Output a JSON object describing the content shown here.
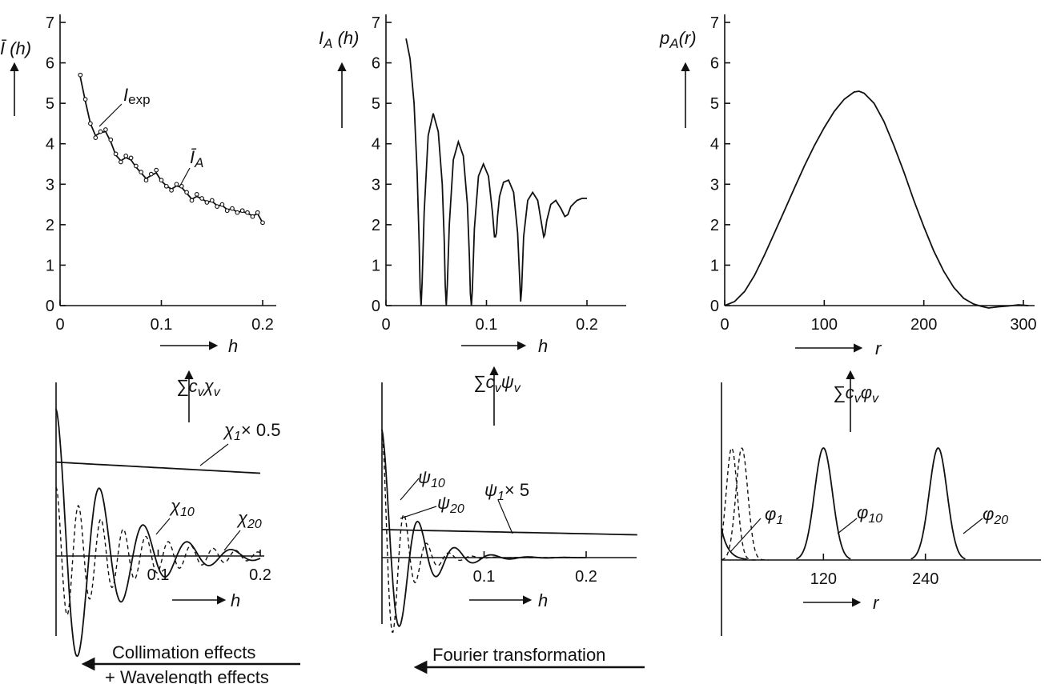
{
  "chart_data": [
    {
      "type": "scatter",
      "panel": "top-left",
      "ylabel": "Ī (h)",
      "xlabel": "h",
      "xlim": [
        0,
        0.2
      ],
      "ylim": [
        0,
        7
      ],
      "xticks": [
        "0",
        "0.1",
        "0.2"
      ],
      "yticks": [
        "0",
        "1",
        "2",
        "3",
        "4",
        "5",
        "6",
        "7"
      ],
      "grid": false,
      "annotations": [
        "I",
        "exp",
        "Ī",
        "A"
      ],
      "series": [
        {
          "name": "I_exp",
          "style": "points",
          "x": [
            0.02,
            0.025,
            0.03,
            0.035,
            0.04,
            0.045,
            0.05,
            0.055,
            0.06,
            0.065,
            0.07,
            0.075,
            0.08,
            0.085,
            0.09,
            0.095,
            0.1,
            0.105,
            0.11,
            0.115,
            0.12,
            0.125,
            0.13,
            0.135,
            0.14,
            0.145,
            0.15,
            0.155,
            0.16,
            0.165,
            0.17,
            0.175,
            0.18,
            0.185,
            0.19,
            0.195,
            0.2
          ],
          "y": [
            5.7,
            5.1,
            4.5,
            4.15,
            4.3,
            4.35,
            4.1,
            3.75,
            3.55,
            3.7,
            3.65,
            3.45,
            3.3,
            3.1,
            3.25,
            3.35,
            3.1,
            2.95,
            2.85,
            3.0,
            2.95,
            2.8,
            2.6,
            2.75,
            2.65,
            2.55,
            2.6,
            2.45,
            2.5,
            2.35,
            2.4,
            2.3,
            2.35,
            2.3,
            2.2,
            2.3,
            2.05
          ]
        },
        {
          "name": "Ī_A",
          "style": "line",
          "x": [
            0.02,
            0.025,
            0.03,
            0.035,
            0.04,
            0.045,
            0.05,
            0.055,
            0.06,
            0.065,
            0.07,
            0.075,
            0.08,
            0.085,
            0.09,
            0.095,
            0.1,
            0.105,
            0.11,
            0.115,
            0.12,
            0.125,
            0.13,
            0.135,
            0.14,
            0.145,
            0.15,
            0.155,
            0.16,
            0.165,
            0.17,
            0.175,
            0.18,
            0.185,
            0.19,
            0.195,
            0.2
          ],
          "y": [
            5.65,
            5.05,
            4.5,
            4.2,
            4.28,
            4.3,
            4.05,
            3.72,
            3.58,
            3.66,
            3.6,
            3.42,
            3.28,
            3.14,
            3.22,
            3.28,
            3.08,
            2.96,
            2.88,
            2.96,
            2.92,
            2.78,
            2.63,
            2.7,
            2.64,
            2.56,
            2.58,
            2.47,
            2.48,
            2.37,
            2.39,
            2.31,
            2.33,
            2.28,
            2.22,
            2.27,
            2.05
          ]
        }
      ]
    },
    {
      "type": "line",
      "panel": "top-middle",
      "ylabel": "I_A (h)",
      "xlabel": "h",
      "xlim": [
        0,
        0.2
      ],
      "ylim": [
        0,
        7
      ],
      "xticks": [
        "0",
        "0.1",
        "0.2"
      ],
      "yticks": [
        "0",
        "1",
        "2",
        "3",
        "4",
        "5",
        "6",
        "7"
      ],
      "grid": false,
      "series": [
        {
          "name": "I_A",
          "x": [
            0.02,
            0.024,
            0.028,
            0.031,
            0.033,
            0.034,
            0.035,
            0.036,
            0.038,
            0.042,
            0.047,
            0.052,
            0.056,
            0.058,
            0.059,
            0.06,
            0.061,
            0.063,
            0.067,
            0.072,
            0.077,
            0.081,
            0.083,
            0.084,
            0.085,
            0.086,
            0.088,
            0.092,
            0.097,
            0.102,
            0.106,
            0.108,
            0.109,
            0.11,
            0.111,
            0.113,
            0.117,
            0.122,
            0.127,
            0.131,
            0.133,
            0.134,
            0.135,
            0.137,
            0.141,
            0.146,
            0.151,
            0.155,
            0.157,
            0.158,
            0.16,
            0.164,
            0.169,
            0.174,
            0.178,
            0.181,
            0.184,
            0.19,
            0.195,
            0.2
          ],
          "y": [
            6.6,
            6.1,
            5.0,
            3.3,
            1.6,
            0.4,
            0.0,
            0.6,
            2.3,
            4.2,
            4.75,
            4.3,
            3.0,
            1.6,
            0.5,
            0.0,
            0.5,
            2.0,
            3.6,
            4.05,
            3.7,
            2.5,
            1.2,
            0.3,
            0.0,
            0.4,
            1.9,
            3.2,
            3.5,
            3.2,
            2.3,
            1.7,
            1.7,
            1.8,
            2.2,
            2.7,
            3.05,
            3.1,
            2.8,
            1.8,
            0.7,
            0.1,
            0.4,
            1.7,
            2.6,
            2.8,
            2.6,
            2.0,
            1.7,
            1.75,
            2.1,
            2.5,
            2.6,
            2.4,
            2.2,
            2.25,
            2.45,
            2.6,
            2.65,
            2.65
          ]
        }
      ]
    },
    {
      "type": "line",
      "panel": "top-right",
      "ylabel": "p_A (r)",
      "xlabel": "r",
      "xlim": [
        0,
        300
      ],
      "ylim": [
        0,
        7
      ],
      "xticks": [
        "0",
        "100",
        "200",
        "300"
      ],
      "yticks": [
        "0",
        "1",
        "2",
        "3",
        "4",
        "5",
        "6",
        "7"
      ],
      "grid": false,
      "series": [
        {
          "name": "p_A",
          "x": [
            0,
            10,
            20,
            30,
            40,
            50,
            60,
            70,
            80,
            90,
            100,
            110,
            120,
            130,
            135,
            140,
            150,
            160,
            170,
            180,
            190,
            200,
            210,
            220,
            230,
            240,
            250,
            258,
            265,
            275,
            285,
            295,
            305
          ],
          "y": [
            0.0,
            0.1,
            0.35,
            0.75,
            1.25,
            1.8,
            2.35,
            2.9,
            3.45,
            3.95,
            4.4,
            4.8,
            5.1,
            5.28,
            5.3,
            5.25,
            5.0,
            4.55,
            3.95,
            3.3,
            2.6,
            1.95,
            1.35,
            0.85,
            0.45,
            0.18,
            0.04,
            -0.02,
            -0.06,
            -0.03,
            -0.01,
            0.02,
            0.0
          ]
        }
      ]
    },
    {
      "type": "line",
      "panel": "bottom-left",
      "xlabel": "h",
      "xlim": [
        0,
        0.2
      ],
      "xticks": [
        "0.1",
        "0.2"
      ],
      "grid": false,
      "annotations": [
        "χ",
        "1",
        "× 0.5",
        "χ",
        "10",
        "χ",
        "20"
      ],
      "series": [
        {
          "name": "χ1 × 0.5",
          "style": "solid",
          "x": [
            0.0,
            0.2
          ],
          "y": [
            1.0,
            0.9
          ]
        },
        {
          "name": "χ10",
          "style": "solid",
          "x": [
            0.0,
            0.2
          ],
          "y": [
            1.6,
            0.0
          ]
        },
        {
          "name": "χ20",
          "style": "dashed",
          "x": [
            0.0,
            0.2
          ],
          "y": [
            0.75,
            0.0
          ]
        }
      ]
    },
    {
      "type": "line",
      "panel": "bottom-middle",
      "xlabel": "h",
      "xlim": [
        0,
        0.2
      ],
      "xticks": [
        "0.1",
        "0.2"
      ],
      "grid": false,
      "annotations": [
        "ψ",
        "10",
        "ψ",
        "20",
        "ψ",
        "1",
        "× 5"
      ],
      "series": [
        {
          "name": "ψ1 × 5",
          "style": "solid",
          "x": [
            0.0,
            0.25
          ],
          "y": [
            0.38,
            0.28
          ]
        },
        {
          "name": "ψ10",
          "style": "solid",
          "x": [
            0.0,
            0.2
          ],
          "y": [
            1.6,
            0.0
          ]
        },
        {
          "name": "ψ20",
          "style": "dashed",
          "x": [
            0.0,
            0.2
          ],
          "y": [
            1.6,
            0.0
          ]
        }
      ]
    },
    {
      "type": "line",
      "panel": "bottom-right",
      "xlabel": "r",
      "xlim": [
        0,
        360
      ],
      "xticks": [
        "120",
        "240"
      ],
      "grid": false,
      "annotations": [
        "φ",
        "1",
        "φ",
        "10",
        "φ",
        "20"
      ],
      "series": [
        {
          "name": "φ1",
          "style": "solid",
          "x": [
            0,
            120
          ],
          "y": [
            0.0,
            1.0
          ]
        },
        {
          "name": "φ10",
          "style": "solid",
          "x": [
            120
          ],
          "y": [
            1.0
          ]
        },
        {
          "name": "φ20",
          "style": "solid",
          "x": [
            255
          ],
          "y": [
            1.0
          ]
        }
      ]
    }
  ],
  "labels": {
    "sum_chi": "∑c",
    "sum_chi_sub1": "v",
    "sum_chi_sym": "χ",
    "sum_chi_sub2": "v",
    "sum_psi": "∑c",
    "sum_psi_sub1": "v",
    "sum_psi_sym": "ψ",
    "sum_psi_sub2": "v",
    "sum_phi": "∑c",
    "sum_phi_sub1": "v",
    "sum_phi_sym": "φ",
    "sum_phi_sub2": "v",
    "collimation_line1": "Collimation effects",
    "collimation_line2": "+ Wavelength effects",
    "fourier": "Fourier transformation"
  }
}
